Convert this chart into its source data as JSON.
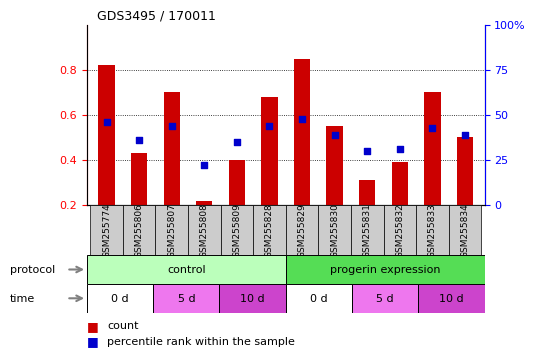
{
  "title": "GDS3495 / 170011",
  "samples": [
    "GSM255774",
    "GSM255806",
    "GSM255807",
    "GSM255808",
    "GSM255809",
    "GSM255828",
    "GSM255829",
    "GSM255830",
    "GSM255831",
    "GSM255832",
    "GSM255833",
    "GSM255834"
  ],
  "red_bars": [
    0.82,
    0.43,
    0.7,
    0.22,
    0.4,
    0.68,
    0.85,
    0.55,
    0.31,
    0.39,
    0.7,
    0.5
  ],
  "blue_dots": [
    0.57,
    0.49,
    0.55,
    0.38,
    0.48,
    0.55,
    0.58,
    0.51,
    0.44,
    0.45,
    0.54,
    0.51
  ],
  "ylim_left": [
    0.2,
    1.0
  ],
  "ylim_right": [
    0,
    100
  ],
  "yticks_left": [
    0.2,
    0.4,
    0.6,
    0.8
  ],
  "yticks_right": [
    0,
    25,
    50,
    75,
    100
  ],
  "ytick_labels_right": [
    "0",
    "25",
    "50",
    "75",
    "100%"
  ],
  "bar_color": "#cc0000",
  "dot_color": "#0000cc",
  "protocol_groups": [
    {
      "label": "control",
      "start": 0,
      "end": 6,
      "color": "#bbffbb"
    },
    {
      "label": "progerin expression",
      "start": 6,
      "end": 12,
      "color": "#55dd55"
    }
  ],
  "time_groups": [
    {
      "label": "0 d",
      "start": 0,
      "end": 2,
      "color": "#ffffff"
    },
    {
      "label": "5 d",
      "start": 2,
      "end": 4,
      "color": "#ee77ee"
    },
    {
      "label": "10 d",
      "start": 4,
      "end": 6,
      "color": "#cc44cc"
    },
    {
      "label": "0 d",
      "start": 6,
      "end": 8,
      "color": "#ffffff"
    },
    {
      "label": "5 d",
      "start": 8,
      "end": 10,
      "color": "#ee77ee"
    },
    {
      "label": "10 d",
      "start": 10,
      "end": 12,
      "color": "#cc44cc"
    }
  ],
  "bar_bottom": 0.2,
  "bar_width": 0.5,
  "xtick_bg": "#cccccc",
  "legend_count_color": "#cc0000",
  "legend_pct_color": "#0000cc",
  "protocol_label": "protocol",
  "time_label": "time"
}
